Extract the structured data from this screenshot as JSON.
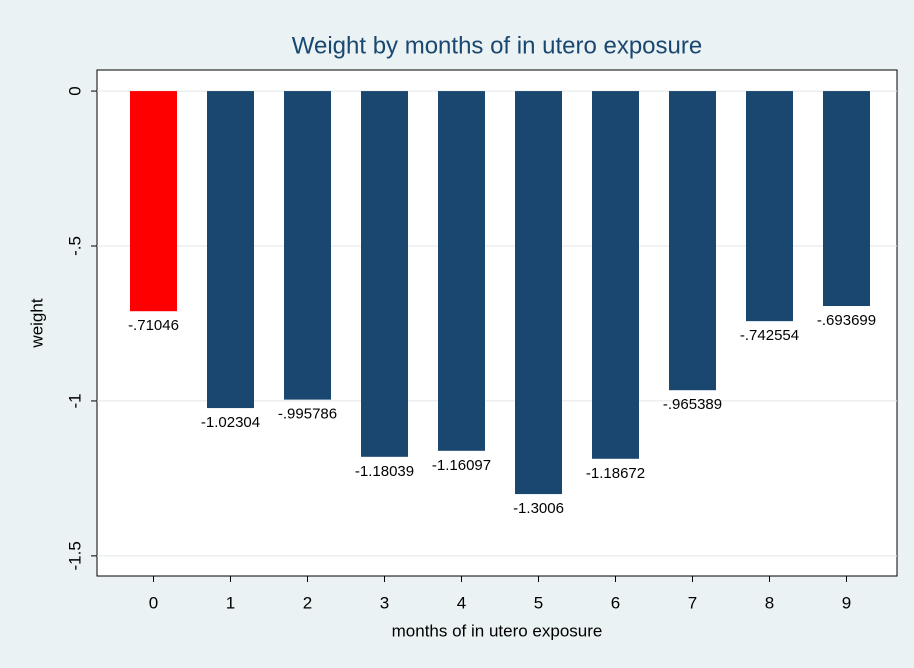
{
  "chart_data": {
    "type": "bar",
    "title": "Weight by months of in utero exposure",
    "x_label": "months of in utero exposure",
    "y_label": "weight",
    "categories": [
      "0",
      "1",
      "2",
      "3",
      "4",
      "5",
      "6",
      "7",
      "8",
      "9"
    ],
    "values": [
      -0.71046,
      -1.02304,
      -0.995786,
      -1.18039,
      -1.16097,
      -1.3006,
      -1.18672,
      -0.965389,
      -0.742554,
      -0.693699
    ],
    "value_labels": [
      "-.71046",
      "-1.02304",
      "-.995786",
      "-1.18039",
      "-1.16097",
      "-1.3006",
      "-1.18672",
      "-.965389",
      "-.742554",
      "-.693699"
    ],
    "colors": [
      "#ff0000",
      "#1a476f",
      "#1a476f",
      "#1a476f",
      "#1a476f",
      "#1a476f",
      "#1a476f",
      "#1a476f",
      "#1a476f",
      "#1a476f"
    ],
    "ylim": [
      -1.565,
      0.068
    ],
    "yticks": [
      0,
      {
        "value": -0.5,
        "label": "-.5"
      },
      -1,
      -1.5
    ],
    "grid": true
  }
}
